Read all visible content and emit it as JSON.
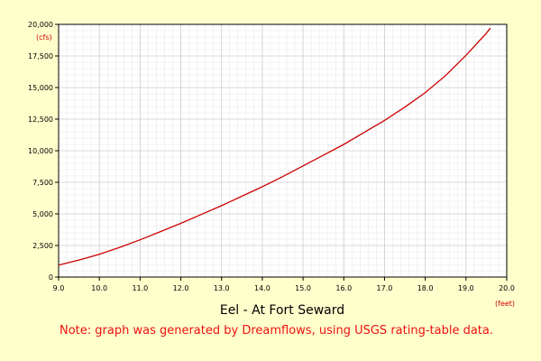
{
  "colors": {
    "background": "#ffffcc",
    "plot_area": "#ffffff",
    "grid": "#cccccc",
    "minor_grid": "#e6e6e6",
    "curve": "#cc0000",
    "note_text": "#ee1111"
  },
  "chart_data": {
    "type": "line",
    "xlabel": "Eel - At Fort Seward",
    "x_unit": "(feet)",
    "y_unit": "(cfs)",
    "note": "Note: graph was generated by Dreamflows, using USGS rating-table data.",
    "xlim": [
      9.0,
      20.0
    ],
    "ylim": [
      0,
      20000
    ],
    "x_ticks": [
      "9.0",
      "10.0",
      "11.0",
      "12.0",
      "13.0",
      "14.0",
      "15.0",
      "16.0",
      "17.0",
      "18.0",
      "19.0",
      "20.0"
    ],
    "y_ticks": [
      "0",
      "2,500",
      "5,000",
      "7,500",
      "10,000",
      "12,500",
      "15,000",
      "17,500",
      "20,000"
    ],
    "grid": true,
    "series": [
      {
        "x": [
          9.0,
          9.5,
          10.0,
          10.5,
          11.0,
          11.5,
          12.0,
          12.5,
          13.0,
          13.5,
          14.0,
          14.5,
          15.0,
          15.5,
          16.0,
          16.5,
          17.0,
          17.5,
          18.0,
          18.5,
          19.0,
          19.5,
          19.6
        ],
        "y": [
          950,
          1350,
          1800,
          2350,
          2950,
          3600,
          4250,
          4950,
          5650,
          6400,
          7150,
          7950,
          8800,
          9650,
          10500,
          11450,
          12400,
          13450,
          14600,
          15950,
          17550,
          19300,
          19700
        ]
      }
    ]
  }
}
